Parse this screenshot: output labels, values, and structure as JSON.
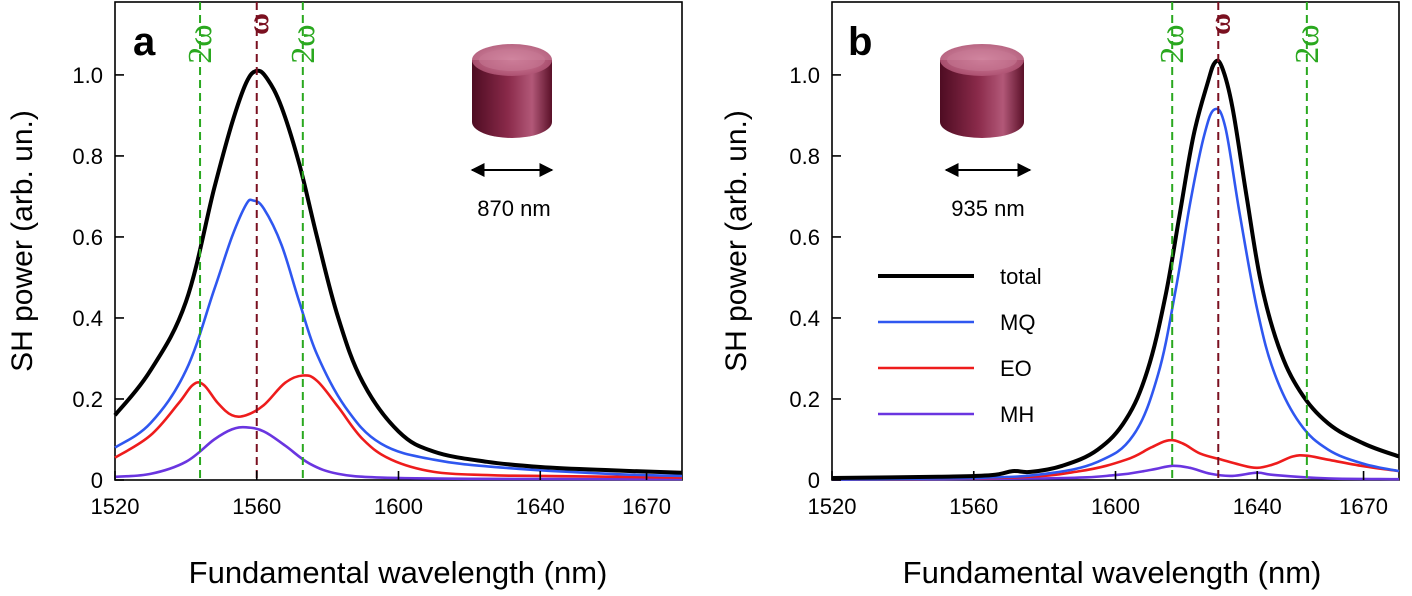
{
  "colors": {
    "total": "#000000",
    "MQ": "#2f57f0",
    "EO": "#ee1c1c",
    "MH": "#6a35e0",
    "two_omega": "#2aa81f",
    "omega": "#7a1020",
    "cylinder": "#7a1838"
  },
  "chart_data": [
    {
      "type": "line",
      "panel_label": "a",
      "xlabel": "Fundamental wavelength (nm)",
      "ylabel": "SH power (arb. un.)",
      "xlim": [
        1520,
        1680
      ],
      "ylim": [
        0,
        1.18
      ],
      "xticks": [
        1520,
        1560,
        1600,
        1640,
        1670
      ],
      "yticks": [
        0,
        0.2,
        0.4,
        0.6,
        0.8,
        1.0
      ],
      "ytick_labels": [
        "0",
        "0.2",
        "0.4",
        "0.6",
        "0.8",
        "1.0"
      ],
      "vlines": [
        {
          "x": 1544,
          "label": "2ω",
          "kind": "two_omega"
        },
        {
          "x": 1560,
          "label": "ω",
          "kind": "omega"
        },
        {
          "x": 1573,
          "label": "2ω",
          "kind": "two_omega"
        }
      ],
      "inset": {
        "dimension": "870 nm"
      },
      "series": [
        {
          "name": "total",
          "points": [
            [
              1520,
              0.16
            ],
            [
              1530,
              0.27
            ],
            [
              1540,
              0.44
            ],
            [
              1548,
              0.72
            ],
            [
              1553,
              0.88
            ],
            [
              1557,
              0.98
            ],
            [
              1560,
              1.01
            ],
            [
              1563,
              0.99
            ],
            [
              1567,
              0.92
            ],
            [
              1572,
              0.78
            ],
            [
              1577,
              0.6
            ],
            [
              1583,
              0.4
            ],
            [
              1590,
              0.24
            ],
            [
              1600,
              0.12
            ],
            [
              1610,
              0.07
            ],
            [
              1625,
              0.045
            ],
            [
              1640,
              0.032
            ],
            [
              1660,
              0.024
            ],
            [
              1680,
              0.018
            ]
          ]
        },
        {
          "name": "MQ",
          "points": [
            [
              1520,
              0.08
            ],
            [
              1530,
              0.14
            ],
            [
              1540,
              0.27
            ],
            [
              1548,
              0.47
            ],
            [
              1553,
              0.6
            ],
            [
              1557,
              0.68
            ],
            [
              1559,
              0.69
            ],
            [
              1562,
              0.67
            ],
            [
              1567,
              0.58
            ],
            [
              1572,
              0.44
            ],
            [
              1577,
              0.31
            ],
            [
              1585,
              0.18
            ],
            [
              1595,
              0.09
            ],
            [
              1610,
              0.05
            ],
            [
              1630,
              0.03
            ],
            [
              1660,
              0.015
            ],
            [
              1680,
              0.01
            ]
          ]
        },
        {
          "name": "EO",
          "points": [
            [
              1520,
              0.055
            ],
            [
              1530,
              0.11
            ],
            [
              1538,
              0.19
            ],
            [
              1542,
              0.235
            ],
            [
              1545,
              0.235
            ],
            [
              1549,
              0.19
            ],
            [
              1553,
              0.16
            ],
            [
              1557,
              0.16
            ],
            [
              1562,
              0.185
            ],
            [
              1568,
              0.24
            ],
            [
              1573,
              0.258
            ],
            [
              1577,
              0.245
            ],
            [
              1583,
              0.18
            ],
            [
              1590,
              0.1
            ],
            [
              1598,
              0.05
            ],
            [
              1610,
              0.02
            ],
            [
              1625,
              0.012
            ],
            [
              1640,
              0.01
            ],
            [
              1680,
              0.006
            ]
          ]
        },
        {
          "name": "MH",
          "points": [
            [
              1520,
              0.008
            ],
            [
              1530,
              0.015
            ],
            [
              1540,
              0.045
            ],
            [
              1548,
              0.1
            ],
            [
              1553,
              0.125
            ],
            [
              1557,
              0.13
            ],
            [
              1562,
              0.12
            ],
            [
              1568,
              0.085
            ],
            [
              1575,
              0.04
            ],
            [
              1583,
              0.015
            ],
            [
              1595,
              0.006
            ],
            [
              1620,
              0.003
            ],
            [
              1680,
              0.002
            ]
          ]
        }
      ]
    },
    {
      "type": "line",
      "panel_label": "b",
      "xlabel": "Fundamental wavelength (nm)",
      "ylabel": "SH power (arb. un.)",
      "xlim": [
        1520,
        1680
      ],
      "ylim": [
        0,
        1.18
      ],
      "xticks": [
        1520,
        1560,
        1600,
        1640,
        1670
      ],
      "yticks": [
        0,
        0.2,
        0.4,
        0.6,
        0.8,
        1.0
      ],
      "ytick_labels": [
        "0",
        "0.2",
        "0.4",
        "0.6",
        "0.8",
        "1.0"
      ],
      "vlines": [
        {
          "x": 1616,
          "label": "2ω",
          "kind": "two_omega"
        },
        {
          "x": 1629,
          "label": "ω",
          "kind": "omega"
        },
        {
          "x": 1654,
          "label": "2ω",
          "kind": "two_omega"
        }
      ],
      "inset": {
        "dimension": "935 nm"
      },
      "legend": [
        "total",
        "MQ",
        "EO",
        "MH"
      ],
      "series": [
        {
          "name": "total",
          "points": [
            [
              1520,
              0.005
            ],
            [
              1550,
              0.008
            ],
            [
              1565,
              0.012
            ],
            [
              1571,
              0.022
            ],
            [
              1576,
              0.02
            ],
            [
              1585,
              0.035
            ],
            [
              1595,
              0.075
            ],
            [
              1603,
              0.15
            ],
            [
              1609,
              0.27
            ],
            [
              1614,
              0.45
            ],
            [
              1618,
              0.65
            ],
            [
              1622,
              0.85
            ],
            [
              1626,
              0.98
            ],
            [
              1628,
              1.03
            ],
            [
              1630,
              1.02
            ],
            [
              1633,
              0.92
            ],
            [
              1637,
              0.7
            ],
            [
              1641,
              0.49
            ],
            [
              1646,
              0.33
            ],
            [
              1652,
              0.22
            ],
            [
              1660,
              0.14
            ],
            [
              1670,
              0.09
            ],
            [
              1680,
              0.058
            ]
          ]
        },
        {
          "name": "MQ",
          "points": [
            [
              1520,
              0.002
            ],
            [
              1560,
              0.005
            ],
            [
              1580,
              0.015
            ],
            [
              1595,
              0.045
            ],
            [
              1605,
              0.11
            ],
            [
              1612,
              0.26
            ],
            [
              1617,
              0.47
            ],
            [
              1621,
              0.68
            ],
            [
              1625,
              0.85
            ],
            [
              1628,
              0.915
            ],
            [
              1631,
              0.87
            ],
            [
              1635,
              0.66
            ],
            [
              1640,
              0.42
            ],
            [
              1645,
              0.26
            ],
            [
              1652,
              0.14
            ],
            [
              1660,
              0.075
            ],
            [
              1670,
              0.04
            ],
            [
              1680,
              0.022
            ]
          ]
        },
        {
          "name": "EO",
          "points": [
            [
              1520,
              0.002
            ],
            [
              1570,
              0.006
            ],
            [
              1590,
              0.022
            ],
            [
              1603,
              0.05
            ],
            [
              1610,
              0.08
            ],
            [
              1615,
              0.098
            ],
            [
              1619,
              0.09
            ],
            [
              1624,
              0.065
            ],
            [
              1630,
              0.05
            ],
            [
              1635,
              0.038
            ],
            [
              1640,
              0.03
            ],
            [
              1645,
              0.04
            ],
            [
              1650,
              0.058
            ],
            [
              1654,
              0.06
            ],
            [
              1660,
              0.05
            ],
            [
              1670,
              0.034
            ],
            [
              1680,
              0.022
            ]
          ]
        },
        {
          "name": "MH",
          "points": [
            [
              1520,
              0.001
            ],
            [
              1580,
              0.004
            ],
            [
              1600,
              0.012
            ],
            [
              1610,
              0.025
            ],
            [
              1616,
              0.035
            ],
            [
              1621,
              0.03
            ],
            [
              1627,
              0.015
            ],
            [
              1633,
              0.01
            ],
            [
              1640,
              0.018
            ],
            [
              1645,
              0.012
            ],
            [
              1660,
              0.004
            ],
            [
              1680,
              0.002
            ]
          ]
        }
      ]
    }
  ]
}
